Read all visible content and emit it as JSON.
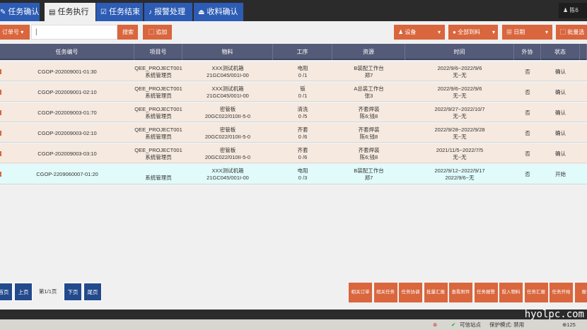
{
  "tabs": [
    {
      "label": "任务确认",
      "icon": "edit-icon"
    },
    {
      "label": "任务执行",
      "icon": "document-icon",
      "active": true
    },
    {
      "label": "任务结束",
      "icon": "check-document-icon"
    },
    {
      "label": "报警处理",
      "icon": "bell-icon"
    },
    {
      "label": "收料确认",
      "icon": "inbox-icon"
    }
  ],
  "user": "陈6",
  "toolbar": {
    "order_dropdown": "订单号",
    "search_value": "|",
    "search": "搜索",
    "add": "追加",
    "equipment": "设备",
    "all_materials": "全部到料",
    "date": "日期",
    "batch": "批量选"
  },
  "columns": [
    "任务编号",
    "项目号",
    "物料",
    "工序",
    "资源",
    "时间",
    "外协",
    "状态"
  ],
  "rows": [
    {
      "task": "CGOP-202009001-01:30",
      "project": "QEE_PROJECT001",
      "owner": "系统管理员",
      "material": "XXX测试机箱",
      "material_code": "21GC045/001I-00",
      "process": "电阻",
      "progress": "0 /1",
      "resource": "B装配工作台",
      "worker": "郑7",
      "plan": "2022/9/6~2022/9/6",
      "actual": "无~无",
      "outsource": "否",
      "status": "确认"
    },
    {
      "task": "CGOP-202009001-02:10",
      "project": "QEE_PROJECT001",
      "owner": "系统管理员",
      "material": "XXX测试机箱",
      "material_code": "21GC045/001I-00",
      "process": "钣",
      "progress": "0 /1",
      "resource": "A总装工作台",
      "worker": "张3",
      "plan": "2022/9/6~2022/9/6",
      "actual": "无~无",
      "outsource": "否",
      "status": "确认"
    },
    {
      "task": "CGOP-202009003-01:70",
      "project": "QEE_PROJECT001",
      "owner": "系统管理员",
      "material": "密管板",
      "material_code": "20GC022/010II-5-0",
      "process": "清洗",
      "progress": "0 /5",
      "resource": "齐套焊装",
      "worker": "陈6;钱8",
      "plan": "2022/9/27~2022/10/7",
      "actual": "无~无",
      "outsource": "否",
      "status": "确认"
    },
    {
      "task": "CGOP-202009003-02:10",
      "project": "QEE_PROJECT001",
      "owner": "系统管理员",
      "material": "密管板",
      "material_code": "20GC022/010II-5-0",
      "process": "齐套",
      "progress": "0 /6",
      "resource": "齐套焊装",
      "worker": "陈6;钱8",
      "plan": "2022/9/28~2022/9/28",
      "actual": "无~无",
      "outsource": "否",
      "status": "确认"
    },
    {
      "task": "CGOP-202009003-03:10",
      "project": "QEE_PROJECT001",
      "owner": "系统管理员",
      "material": "密管板",
      "material_code": "20GC022/010II-5-0",
      "process": "齐套",
      "progress": "0 /6",
      "resource": "齐套焊装",
      "worker": "陈6;钱8",
      "plan": "2021/11/5~2022/7/5",
      "actual": "无~无",
      "outsource": "否",
      "status": "确认"
    },
    {
      "task": "CGOP-2209060007-01:20",
      "project": "",
      "owner": "系统管理员",
      "material": "XXX测试机箱",
      "material_code": "21GC045/001I-00",
      "process": "电阻",
      "progress": "0 /3",
      "resource": "B装配工作台",
      "worker": "郑7",
      "plan": "2022/9/12~2022/9/17",
      "actual": "2022/9/6~无",
      "outsource": "否",
      "status": "开始"
    }
  ],
  "pagination": {
    "first": "首页",
    "prev": "上页",
    "info": "第1/1页",
    "next": "下页",
    "last": "尾页"
  },
  "actions": [
    "相关订单",
    "相关任务",
    "任务协调",
    "批量汇报",
    "查看附件",
    "任务报警",
    "投入物料",
    "任务汇报",
    "任务开始",
    "报告"
  ],
  "statusbar": {
    "trusted": "可信站点",
    "protected": "保护模式: 禁用",
    "zoom": "125"
  },
  "watermark": "hyolpc.com"
}
